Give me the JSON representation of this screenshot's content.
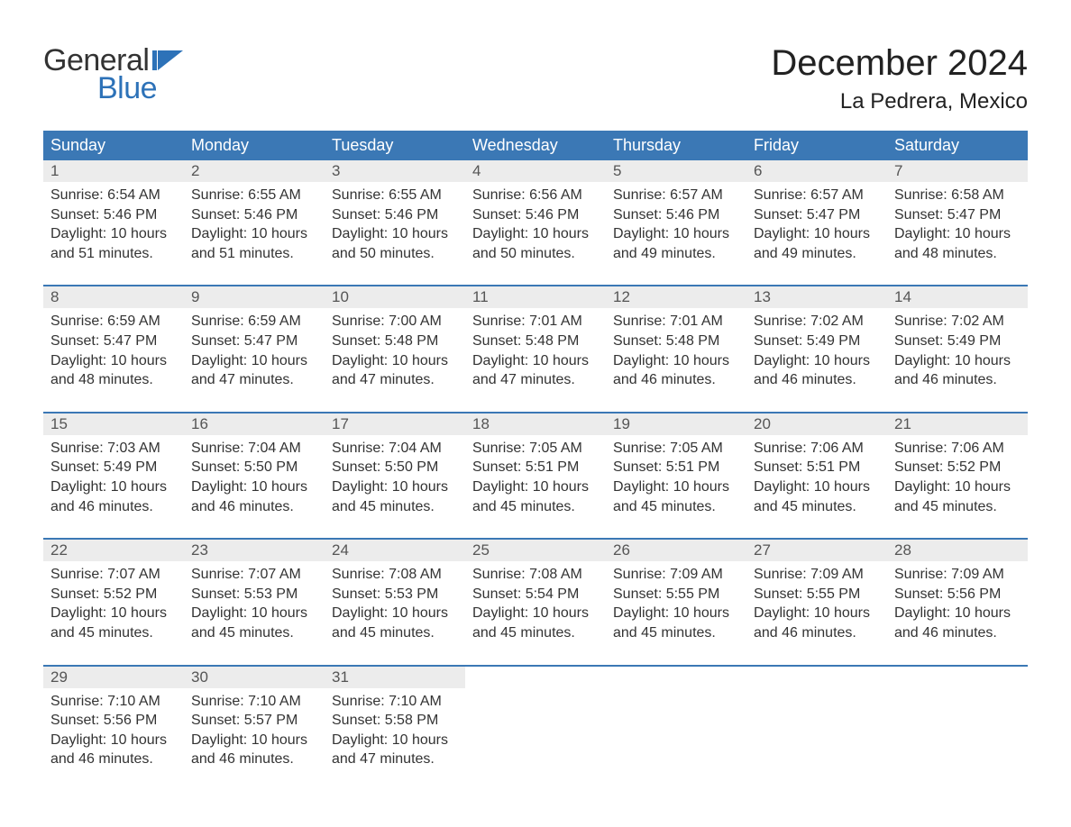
{
  "logo": {
    "text1": "General",
    "text2": "Blue",
    "flag_color": "#2d72b8"
  },
  "title": "December 2024",
  "location": "La Pedrera, Mexico",
  "colors": {
    "header_bg": "#3b78b5",
    "header_text": "#ffffff",
    "daynum_bg": "#ececec",
    "daynum_text": "#555555",
    "body_text": "#333333",
    "rule": "#3b78b5",
    "page_bg": "#ffffff",
    "logo_blue": "#2d72b8"
  },
  "typography": {
    "title_fontsize": 40,
    "location_fontsize": 24,
    "header_fontsize": 18,
    "daynum_fontsize": 17,
    "cell_fontsize": 16,
    "logo_fontsize": 34
  },
  "day_headers": [
    "Sunday",
    "Monday",
    "Tuesday",
    "Wednesday",
    "Thursday",
    "Friday",
    "Saturday"
  ],
  "labels": {
    "sunrise": "Sunrise: ",
    "sunset": "Sunset: ",
    "daylight": "Daylight: "
  },
  "weeks": [
    [
      {
        "n": "1",
        "sunrise": "6:54 AM",
        "sunset": "5:46 PM",
        "daylight": "10 hours and 51 minutes."
      },
      {
        "n": "2",
        "sunrise": "6:55 AM",
        "sunset": "5:46 PM",
        "daylight": "10 hours and 51 minutes."
      },
      {
        "n": "3",
        "sunrise": "6:55 AM",
        "sunset": "5:46 PM",
        "daylight": "10 hours and 50 minutes."
      },
      {
        "n": "4",
        "sunrise": "6:56 AM",
        "sunset": "5:46 PM",
        "daylight": "10 hours and 50 minutes."
      },
      {
        "n": "5",
        "sunrise": "6:57 AM",
        "sunset": "5:46 PM",
        "daylight": "10 hours and 49 minutes."
      },
      {
        "n": "6",
        "sunrise": "6:57 AM",
        "sunset": "5:47 PM",
        "daylight": "10 hours and 49 minutes."
      },
      {
        "n": "7",
        "sunrise": "6:58 AM",
        "sunset": "5:47 PM",
        "daylight": "10 hours and 48 minutes."
      }
    ],
    [
      {
        "n": "8",
        "sunrise": "6:59 AM",
        "sunset": "5:47 PM",
        "daylight": "10 hours and 48 minutes."
      },
      {
        "n": "9",
        "sunrise": "6:59 AM",
        "sunset": "5:47 PM",
        "daylight": "10 hours and 47 minutes."
      },
      {
        "n": "10",
        "sunrise": "7:00 AM",
        "sunset": "5:48 PM",
        "daylight": "10 hours and 47 minutes."
      },
      {
        "n": "11",
        "sunrise": "7:01 AM",
        "sunset": "5:48 PM",
        "daylight": "10 hours and 47 minutes."
      },
      {
        "n": "12",
        "sunrise": "7:01 AM",
        "sunset": "5:48 PM",
        "daylight": "10 hours and 46 minutes."
      },
      {
        "n": "13",
        "sunrise": "7:02 AM",
        "sunset": "5:49 PM",
        "daylight": "10 hours and 46 minutes."
      },
      {
        "n": "14",
        "sunrise": "7:02 AM",
        "sunset": "5:49 PM",
        "daylight": "10 hours and 46 minutes."
      }
    ],
    [
      {
        "n": "15",
        "sunrise": "7:03 AM",
        "sunset": "5:49 PM",
        "daylight": "10 hours and 46 minutes."
      },
      {
        "n": "16",
        "sunrise": "7:04 AM",
        "sunset": "5:50 PM",
        "daylight": "10 hours and 46 minutes."
      },
      {
        "n": "17",
        "sunrise": "7:04 AM",
        "sunset": "5:50 PM",
        "daylight": "10 hours and 45 minutes."
      },
      {
        "n": "18",
        "sunrise": "7:05 AM",
        "sunset": "5:51 PM",
        "daylight": "10 hours and 45 minutes."
      },
      {
        "n": "19",
        "sunrise": "7:05 AM",
        "sunset": "5:51 PM",
        "daylight": "10 hours and 45 minutes."
      },
      {
        "n": "20",
        "sunrise": "7:06 AM",
        "sunset": "5:51 PM",
        "daylight": "10 hours and 45 minutes."
      },
      {
        "n": "21",
        "sunrise": "7:06 AM",
        "sunset": "5:52 PM",
        "daylight": "10 hours and 45 minutes."
      }
    ],
    [
      {
        "n": "22",
        "sunrise": "7:07 AM",
        "sunset": "5:52 PM",
        "daylight": "10 hours and 45 minutes."
      },
      {
        "n": "23",
        "sunrise": "7:07 AM",
        "sunset": "5:53 PM",
        "daylight": "10 hours and 45 minutes."
      },
      {
        "n": "24",
        "sunrise": "7:08 AM",
        "sunset": "5:53 PM",
        "daylight": "10 hours and 45 minutes."
      },
      {
        "n": "25",
        "sunrise": "7:08 AM",
        "sunset": "5:54 PM",
        "daylight": "10 hours and 45 minutes."
      },
      {
        "n": "26",
        "sunrise": "7:09 AM",
        "sunset": "5:55 PM",
        "daylight": "10 hours and 45 minutes."
      },
      {
        "n": "27",
        "sunrise": "7:09 AM",
        "sunset": "5:55 PM",
        "daylight": "10 hours and 46 minutes."
      },
      {
        "n": "28",
        "sunrise": "7:09 AM",
        "sunset": "5:56 PM",
        "daylight": "10 hours and 46 minutes."
      }
    ],
    [
      {
        "n": "29",
        "sunrise": "7:10 AM",
        "sunset": "5:56 PM",
        "daylight": "10 hours and 46 minutes."
      },
      {
        "n": "30",
        "sunrise": "7:10 AM",
        "sunset": "5:57 PM",
        "daylight": "10 hours and 46 minutes."
      },
      {
        "n": "31",
        "sunrise": "7:10 AM",
        "sunset": "5:58 PM",
        "daylight": "10 hours and 47 minutes."
      },
      null,
      null,
      null,
      null
    ]
  ]
}
